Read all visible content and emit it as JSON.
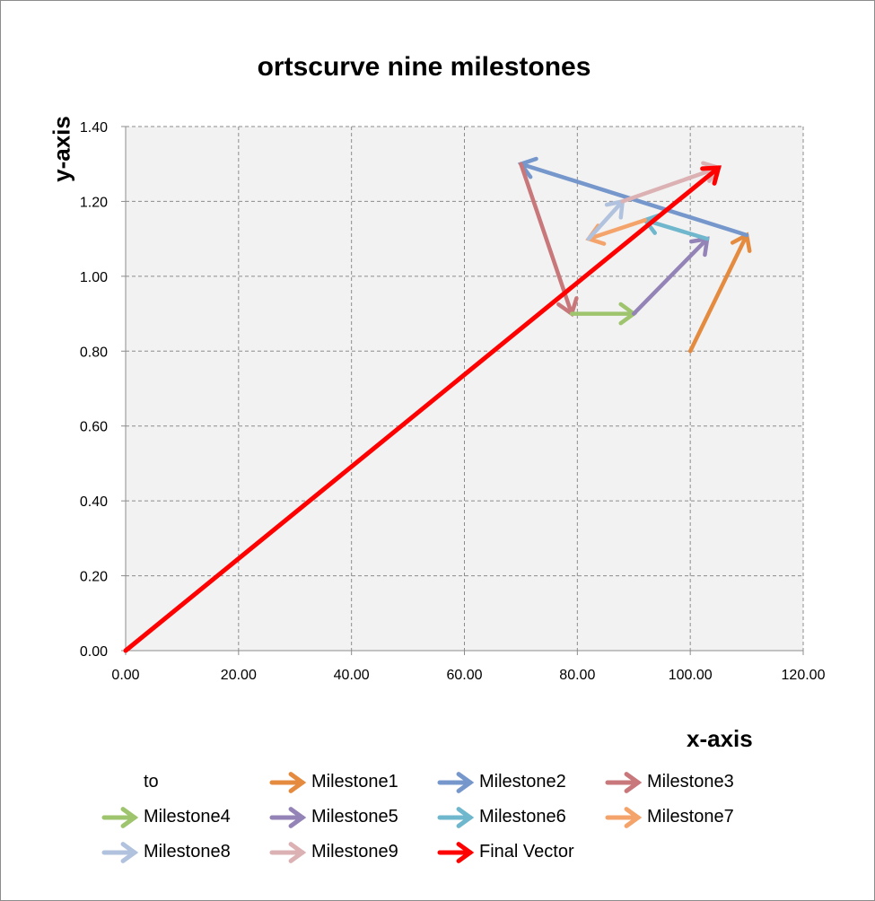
{
  "chart_data": {
    "type": "vector-scatter",
    "title": "ortscurve nine milestones",
    "xlabel": "x-axis",
    "ylabel": "y-axis",
    "xlim": [
      0,
      120
    ],
    "ylim": [
      0,
      1.4
    ],
    "x_ticks": [
      "0.00",
      "20.00",
      "40.00",
      "60.00",
      "80.00",
      "100.00",
      "120.00"
    ],
    "y_ticks": [
      "0.00",
      "0.20",
      "0.40",
      "0.60",
      "0.80",
      "1.00",
      "1.20",
      "1.40"
    ],
    "grid": true,
    "legend_position": "bottom",
    "series": [
      {
        "name": "to",
        "color": "#4472c4",
        "arrow": false,
        "from": [
          0,
          0
        ],
        "to": [
          0,
          0
        ]
      },
      {
        "name": "Milestone1",
        "color": "#e48b3f",
        "arrow": true,
        "from": [
          100,
          0.8
        ],
        "to": [
          110,
          1.11
        ]
      },
      {
        "name": "Milestone2",
        "color": "#7597cc",
        "arrow": true,
        "from": [
          110,
          1.11
        ],
        "to": [
          70,
          1.3
        ]
      },
      {
        "name": "Milestone3",
        "color": "#c8777a",
        "arrow": true,
        "from": [
          70,
          1.3
        ],
        "to": [
          79,
          0.9
        ]
      },
      {
        "name": "Milestone4",
        "color": "#9fc46e",
        "arrow": true,
        "from": [
          79,
          0.9
        ],
        "to": [
          90,
          0.9
        ]
      },
      {
        "name": "Milestone5",
        "color": "#9383b6",
        "arrow": true,
        "from": [
          90,
          0.9
        ],
        "to": [
          103,
          1.1
        ]
      },
      {
        "name": "Milestone6",
        "color": "#6fb7cc",
        "arrow": true,
        "from": [
          103,
          1.1
        ],
        "to": [
          92,
          1.15
        ]
      },
      {
        "name": "Milestone7",
        "color": "#f4a36a",
        "arrow": true,
        "from": [
          92,
          1.15
        ],
        "to": [
          82,
          1.1
        ]
      },
      {
        "name": "Milestone8",
        "color": "#b1c2de",
        "arrow": true,
        "from": [
          82,
          1.1
        ],
        "to": [
          88,
          1.2
        ]
      },
      {
        "name": "Milestone9",
        "color": "#dcb1b3",
        "arrow": true,
        "from": [
          88,
          1.2
        ],
        "to": [
          105,
          1.29
        ]
      },
      {
        "name": "Final Vector",
        "color": "#ff0000",
        "arrow": true,
        "from": [
          0,
          0
        ],
        "to": [
          105,
          1.29
        ]
      }
    ]
  }
}
